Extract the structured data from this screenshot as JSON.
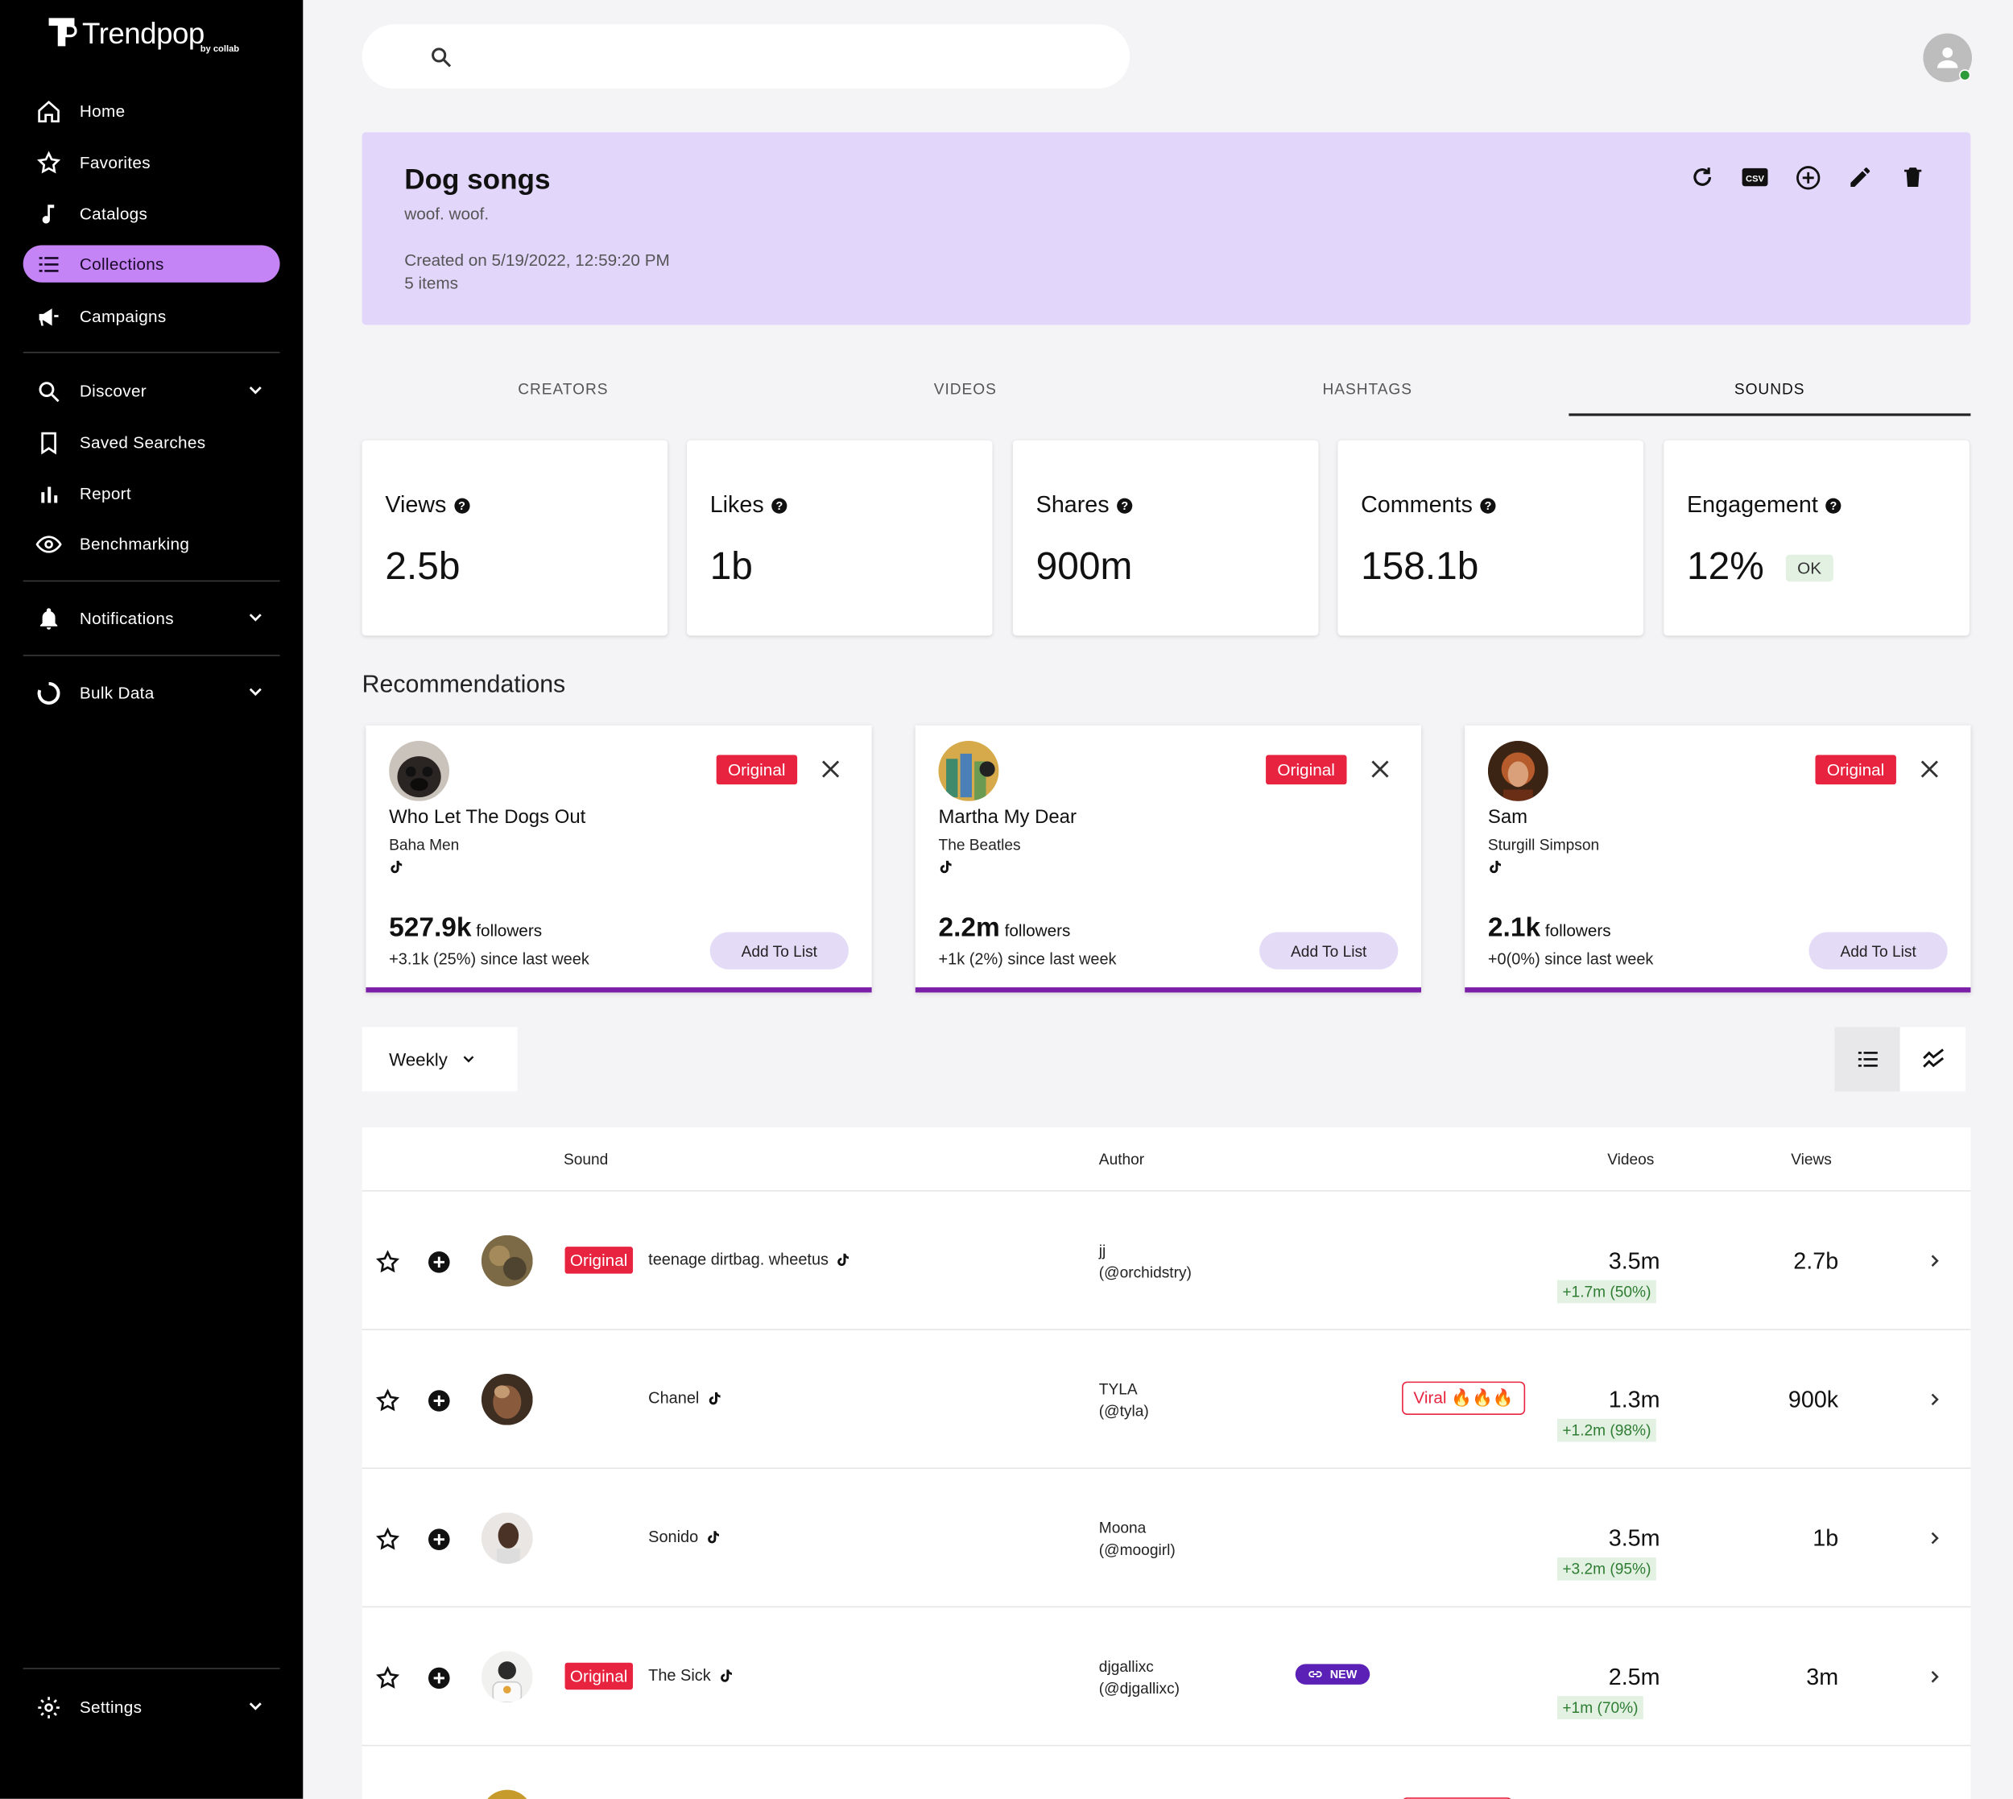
{
  "app": {
    "brand": "Trendpop",
    "brand_sub": "by collab"
  },
  "sidebar": {
    "items": [
      {
        "label": "Home",
        "icon": "home-icon"
      },
      {
        "label": "Favorites",
        "icon": "star-outline-icon"
      },
      {
        "label": "Catalogs",
        "icon": "music-note-icon"
      },
      {
        "label": "Collections",
        "icon": "list-icon",
        "active": true
      },
      {
        "label": "Campaigns",
        "icon": "megaphone-icon"
      },
      {
        "label": "Discover",
        "icon": "search-icon",
        "expandable": true
      },
      {
        "label": "Saved Searches",
        "icon": "bookmark-icon"
      },
      {
        "label": "Report",
        "icon": "bar-chart-icon"
      },
      {
        "label": "Benchmarking",
        "icon": "eye-icon"
      },
      {
        "label": "Notifications",
        "icon": "bell-icon",
        "expandable": true
      },
      {
        "label": "Bulk Data",
        "icon": "ring-icon",
        "expandable": true
      },
      {
        "label": "Settings",
        "icon": "gear-icon",
        "expandable": true
      }
    ]
  },
  "search": {
    "placeholder": ""
  },
  "collection": {
    "title": "Dog songs",
    "description": "woof. woof.",
    "created": "Created on 5/19/2022, 12:59:20 PM",
    "items_count": "5 items",
    "actions": [
      "refresh-icon",
      "csv-icon",
      "add-circle-icon",
      "edit-icon",
      "delete-icon"
    ]
  },
  "tabs": [
    {
      "label": "CREATORS"
    },
    {
      "label": "VIDEOS"
    },
    {
      "label": "HASHTAGS"
    },
    {
      "label": "SOUNDS",
      "active": true
    }
  ],
  "stats": [
    {
      "label": "Views",
      "value": "2.5b"
    },
    {
      "label": "Likes",
      "value": "1b"
    },
    {
      "label": "Shares",
      "value": "900m"
    },
    {
      "label": "Comments",
      "value": "158.1b"
    },
    {
      "label": "Engagement",
      "value": "12%",
      "badge": "OK"
    }
  ],
  "recommendations": {
    "title": "Recommendations",
    "cards": [
      {
        "song": "Who Let The Dogs Out",
        "artist": "Baha Men",
        "badge": "Original",
        "followers": "527.9k",
        "followers_label": "followers",
        "since": "+3.1k (25%) since last week",
        "button": "Add To List"
      },
      {
        "song": "Martha My Dear",
        "artist": "The Beatles",
        "badge": "Original",
        "followers": "2.2m",
        "followers_label": "followers",
        "since": "+1k (2%) since last week",
        "button": "Add To List"
      },
      {
        "song": "Sam",
        "artist": "Sturgill Simpson",
        "badge": "Original",
        "followers": "2.1k",
        "followers_label": "followers",
        "since": "+0(0%) since last week",
        "button": "Add To List"
      }
    ]
  },
  "controls": {
    "period": "Weekly"
  },
  "table": {
    "headers": {
      "sound": "Sound",
      "author": "Author",
      "videos": "Videos",
      "views": "Views"
    },
    "rows": [
      {
        "original": "Original",
        "sound": "teenage dirtbag. wheetus",
        "author": "jj",
        "handle": "(@orchidstry)",
        "videos": "3.5m",
        "delta": "+1.7m (50%)",
        "views": "2.7b"
      },
      {
        "original": "",
        "sound": "Chanel",
        "author": "TYLA",
        "handle": "(@tyla)",
        "tag": "Viral 🔥🔥🔥",
        "videos": "1.3m",
        "delta": "+1.2m (98%)",
        "views": "900k"
      },
      {
        "original": "",
        "sound": "Sonido",
        "author": "Moona",
        "handle": "(@moogirl)",
        "videos": "3.5m",
        "delta": "+3.2m (95%)",
        "views": "1b"
      },
      {
        "original": "Original",
        "sound": "The Sick",
        "author": "djgallixc",
        "handle": "(@djgallixc)",
        "new": "NEW",
        "videos": "2.5m",
        "delta": "+1m (70%)",
        "views": "3m"
      }
    ]
  }
}
